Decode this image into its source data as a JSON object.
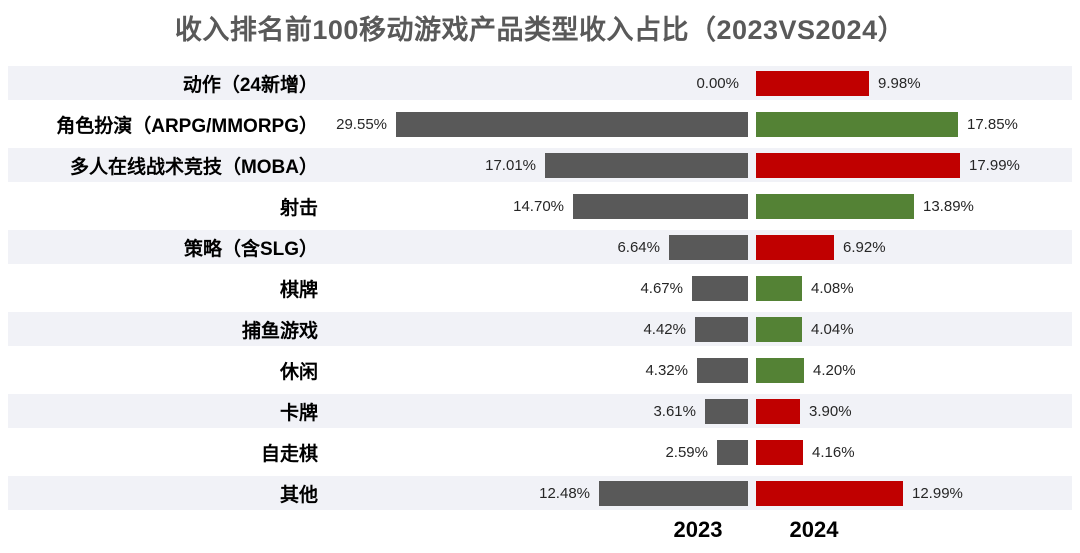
{
  "title": "收入排名前100移动游戏产品类型收入占比（2023VS2024）",
  "chart_data": {
    "type": "bar",
    "subtype": "back-to-back horizontal tornado",
    "title": "收入排名前100移动游戏产品类型收入占比（2023VS2024）",
    "categories": [
      "动作（24新增）",
      "角色扮演（ARPG/MMORPG）",
      "多人在线战术竞技（MOBA）",
      "射击",
      "策略（含SLG）",
      "棋牌",
      "捕鱼游戏",
      "休闲",
      "卡牌",
      "自走棋",
      "其他"
    ],
    "series": [
      {
        "name": "2023",
        "direction": "left",
        "values": [
          0.0,
          29.55,
          17.01,
          14.7,
          6.64,
          4.67,
          4.42,
          4.32,
          3.61,
          2.59,
          12.48
        ],
        "labels": [
          "0.00%",
          "29.55%",
          "17.01%",
          "14.70%",
          "6.64%",
          "4.67%",
          "4.42%",
          "4.32%",
          "3.61%",
          "2.59%",
          "12.48%"
        ],
        "color": "#595959"
      },
      {
        "name": "2024",
        "direction": "right",
        "values": [
          9.98,
          17.85,
          17.99,
          13.89,
          6.92,
          4.08,
          4.04,
          4.2,
          3.9,
          4.16,
          12.99
        ],
        "labels": [
          "9.98%",
          "17.85%",
          "17.99%",
          "13.89%",
          "6.92%",
          "4.08%",
          "4.04%",
          "4.20%",
          "3.90%",
          "4.16%",
          "12.99%"
        ],
        "bar_colors": [
          "#C00000",
          "#548235",
          "#C00000",
          "#548235",
          "#C00000",
          "#548235",
          "#548235",
          "#548235",
          "#C00000",
          "#C00000",
          "#C00000"
        ]
      }
    ],
    "series_names": [
      "2023",
      "2024"
    ],
    "value_labels_shown": true,
    "axis_ticks_shown": false,
    "legend_position": "bottom",
    "color_semantics": {
      "increase_vs_2023": "#C00000",
      "decrease_vs_2023": "#548235",
      "base_year_2023": "#595959"
    },
    "row_stripe_color": "#F1F2F7",
    "striped_row_indexes": [
      0,
      2,
      4,
      6,
      8,
      10
    ]
  },
  "colors": {
    "title_text": "#595959",
    "category_text": "#000000",
    "value_text": "#262626",
    "gray_bar": "#595959",
    "red_bar": "#C00000",
    "green_bar": "#548235",
    "stripe": "#F1F2F7",
    "background": "#FFFFFF"
  }
}
